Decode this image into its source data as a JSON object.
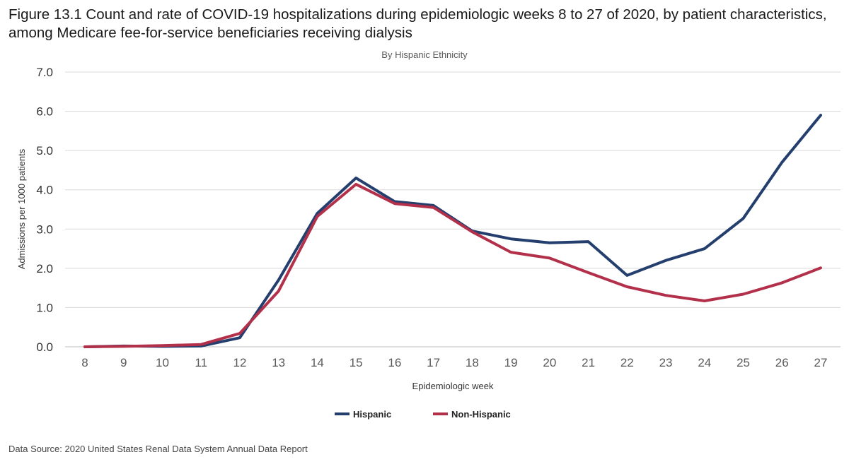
{
  "title": "Figure 13.1 Count and rate of COVID-19 hospitalizations during epidemiologic weeks 8 to 27 of 2020, by patient characteristics, among Medicare fee-for-service beneficiaries receiving dialysis",
  "source_note": "Data Source: 2020 United States Renal Data System Annual Data Report",
  "chart_data": {
    "type": "line",
    "subtitle": "By Hispanic Ethnicity",
    "xlabel": "Epidemiologic week",
    "ylabel": "Admissions per 1000 patients",
    "categories": [
      "8",
      "9",
      "10",
      "11",
      "12",
      "13",
      "14",
      "15",
      "16",
      "17",
      "18",
      "19",
      "20",
      "21",
      "22",
      "23",
      "24",
      "25",
      "26",
      "27"
    ],
    "ylim": [
      0,
      7
    ],
    "yticks": [
      "0.0",
      "1.0",
      "2.0",
      "3.0",
      "4.0",
      "5.0",
      "6.0",
      "7.0"
    ],
    "grid": true,
    "legend_position": "bottom",
    "series": [
      {
        "name": "Hispanic",
        "color": "#243f6e",
        "values": [
          0.0,
          0.02,
          0.01,
          0.02,
          0.23,
          1.7,
          3.4,
          4.3,
          3.7,
          3.6,
          2.95,
          2.75,
          2.65,
          2.68,
          1.82,
          2.2,
          2.5,
          3.27,
          4.7,
          5.9
        ]
      },
      {
        "name": "Non-Hispanic",
        "color": "#b3304a",
        "values": [
          0.0,
          0.01,
          0.03,
          0.06,
          0.34,
          1.42,
          3.32,
          4.14,
          3.65,
          3.55,
          2.93,
          2.41,
          2.26,
          1.89,
          1.53,
          1.31,
          1.17,
          1.34,
          1.63,
          2.01
        ]
      }
    ]
  }
}
